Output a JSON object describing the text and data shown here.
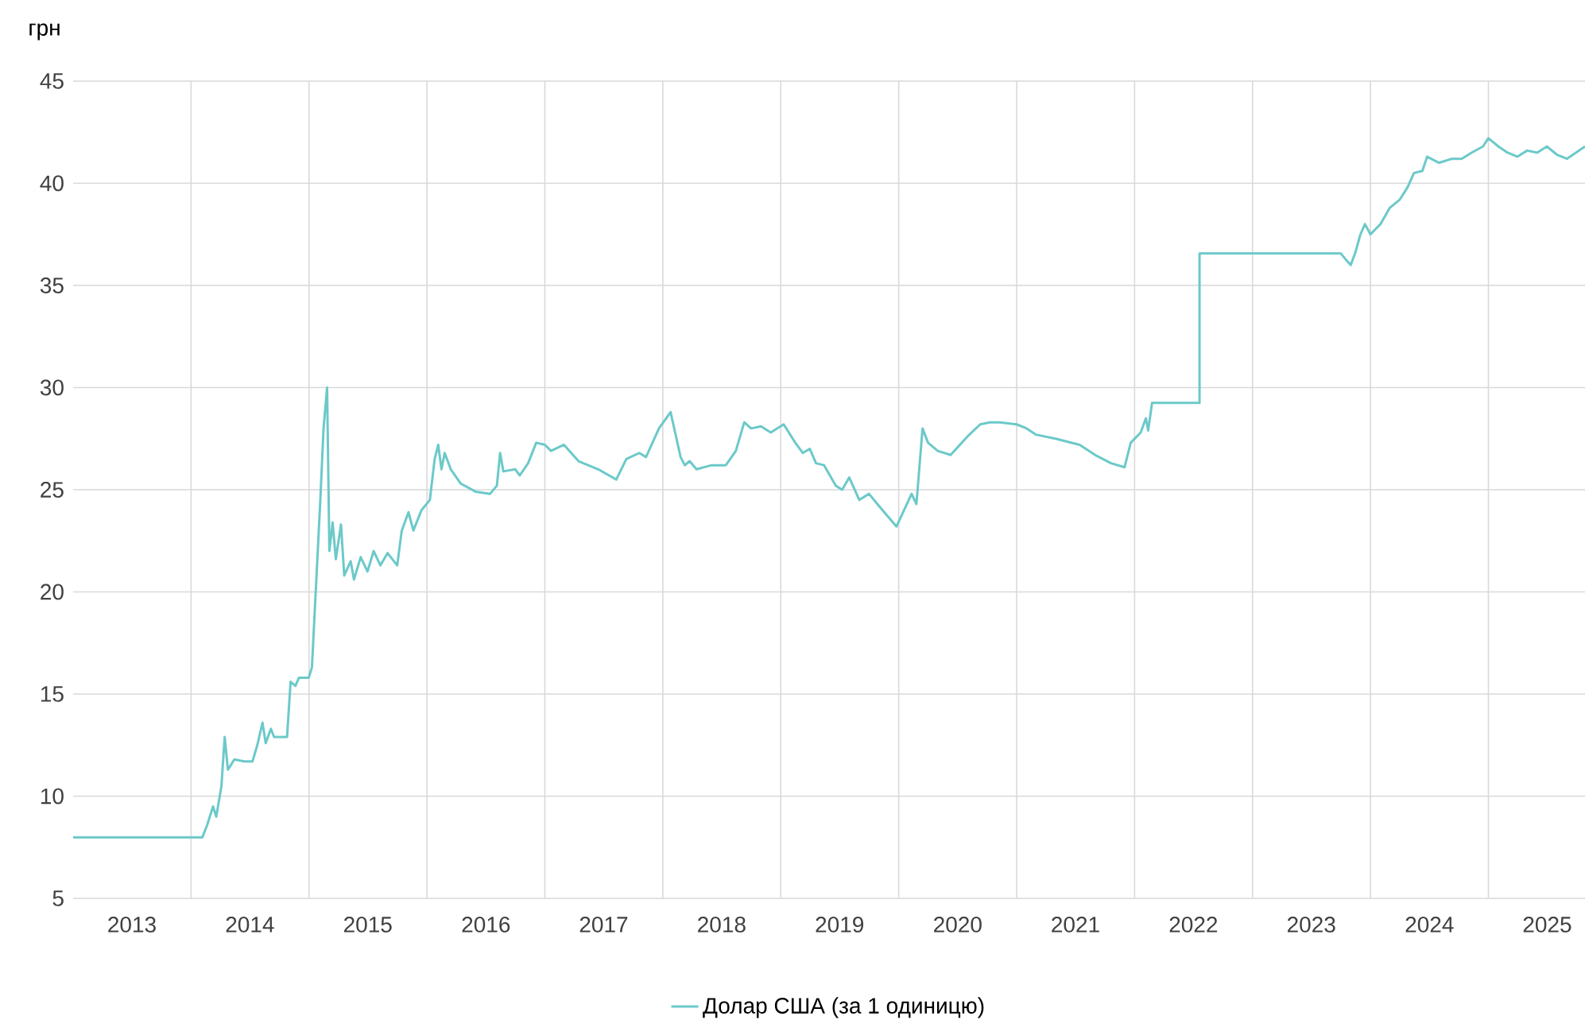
{
  "chart_data": {
    "type": "line",
    "ylabel": "грн",
    "legend": "bottom",
    "grid": true,
    "marker": "none",
    "line_style": "solid",
    "xlim": [
      "2013-01-01",
      "2025-10-27"
    ],
    "ylim": [
      5,
      45
    ],
    "yticks": [
      5,
      10,
      15,
      20,
      25,
      30,
      35,
      40,
      45
    ],
    "xticks": [
      {
        "value": "2014-01-01",
        "label": null
      },
      {
        "value": "2015-01-01",
        "label": null
      },
      {
        "value": "2016-01-01",
        "label": null
      },
      {
        "value": "2017-01-01",
        "label": null
      },
      {
        "value": "2018-01-01",
        "label": null
      },
      {
        "value": "2019-01-01",
        "label": null
      },
      {
        "value": "2020-01-01",
        "label": null
      },
      {
        "value": "2021-01-01",
        "label": null
      },
      {
        "value": "2022-01-01",
        "label": null
      },
      {
        "value": "2023-01-01",
        "label": null
      },
      {
        "value": "2024-01-01",
        "label": null
      },
      {
        "value": "2025-01-01",
        "label": null
      },
      {
        "value": "2013-07-02",
        "label": "2013"
      },
      {
        "value": "2014-07-02",
        "label": "2014"
      },
      {
        "value": "2015-07-02",
        "label": "2015"
      },
      {
        "value": "2016-07-02",
        "label": "2016"
      },
      {
        "value": "2017-07-02",
        "label": "2017"
      },
      {
        "value": "2018-07-02",
        "label": "2018"
      },
      {
        "value": "2019-07-02",
        "label": "2019"
      },
      {
        "value": "2020-07-02",
        "label": "2020"
      },
      {
        "value": "2021-07-02",
        "label": "2021"
      },
      {
        "value": "2022-07-02",
        "label": "2022"
      },
      {
        "value": "2023-07-02",
        "label": "2023"
      },
      {
        "value": "2024-07-02",
        "label": "2024"
      },
      {
        "value": "2025-07-02",
        "label": "2025"
      }
    ],
    "series": [
      {
        "name": "Долар США (за 1 одиницю)",
        "color": "#6cc9c9",
        "x": [
          "2013-01-01",
          "2014-02-05",
          "2014-02-20",
          "2014-03-10",
          "2014-03-20",
          "2014-04-05",
          "2014-04-15",
          "2014-04-25",
          "2014-05-15",
          "2014-06-15",
          "2014-07-10",
          "2014-07-25",
          "2014-08-10",
          "2014-08-20",
          "2014-09-05",
          "2014-09-15",
          "2014-10-25",
          "2014-11-05",
          "2014-11-20",
          "2014-12-01",
          "2014-12-31",
          "2015-01-10",
          "2015-02-05",
          "2015-02-15",
          "2015-02-26",
          "2015-03-05",
          "2015-03-15",
          "2015-03-25",
          "2015-04-10",
          "2015-04-20",
          "2015-05-10",
          "2015-05-20",
          "2015-06-10",
          "2015-07-01",
          "2015-07-20",
          "2015-08-10",
          "2015-09-01",
          "2015-10-01",
          "2015-10-15",
          "2015-11-05",
          "2015-11-20",
          "2015-12-15",
          "2016-01-10",
          "2016-01-25",
          "2016-02-05",
          "2016-02-15",
          "2016-02-25",
          "2016-03-15",
          "2016-04-15",
          "2016-06-01",
          "2016-07-15",
          "2016-08-05",
          "2016-08-15",
          "2016-08-25",
          "2016-10-01",
          "2016-10-15",
          "2016-11-10",
          "2016-12-05",
          "2017-01-01",
          "2017-01-20",
          "2017-03-01",
          "2017-04-15",
          "2017-06-15",
          "2017-08-10",
          "2017-09-10",
          "2017-10-20",
          "2017-11-10",
          "2017-12-20",
          "2018-01-25",
          "2018-02-25",
          "2018-03-10",
          "2018-03-25",
          "2018-04-15",
          "2018-06-01",
          "2018-07-15",
          "2018-08-15",
          "2018-09-10",
          "2018-10-01",
          "2018-11-01",
          "2018-12-01",
          "2019-01-10",
          "2019-02-15",
          "2019-03-10",
          "2019-04-01",
          "2019-04-20",
          "2019-05-15",
          "2019-06-20",
          "2019-07-10",
          "2019-08-01",
          "2019-09-01",
          "2019-10-01",
          "2019-11-01",
          "2019-12-25",
          "2020-02-10",
          "2020-02-25",
          "2020-03-15",
          "2020-04-01",
          "2020-05-01",
          "2020-06-10",
          "2020-08-01",
          "2020-09-10",
          "2020-10-10",
          "2020-11-10",
          "2021-01-01",
          "2021-02-01",
          "2021-03-01",
          "2021-05-01",
          "2021-07-15",
          "2021-09-01",
          "2021-10-20",
          "2021-12-01",
          "2021-12-20",
          "2022-01-20",
          "2022-02-05",
          "2022-02-12",
          "2022-02-24",
          "2022-07-21",
          "2022-07-21",
          "2023-10-01",
          "2023-10-20",
          "2023-11-01",
          "2023-11-15",
          "2023-12-01",
          "2023-12-15",
          "2024-01-01",
          "2024-02-01",
          "2024-03-01",
          "2024-04-01",
          "2024-04-25",
          "2024-05-15",
          "2024-06-10",
          "2024-06-25",
          "2024-08-01",
          "2024-09-10",
          "2024-10-10",
          "2024-11-10",
          "2024-12-15",
          "2025-01-01",
          "2025-02-01",
          "2025-03-01",
          "2025-04-01",
          "2025-05-01",
          "2025-06-01",
          "2025-07-01",
          "2025-08-01",
          "2025-09-01",
          "2025-10-27"
        ],
        "values": [
          7.99,
          7.99,
          8.6,
          9.5,
          9.0,
          10.5,
          12.9,
          11.3,
          11.8,
          11.7,
          11.7,
          12.5,
          13.6,
          12.6,
          13.3,
          12.9,
          12.9,
          15.6,
          15.4,
          15.8,
          15.8,
          16.3,
          24.5,
          28.0,
          30.0,
          22.0,
          23.4,
          21.6,
          23.3,
          20.8,
          21.5,
          20.6,
          21.7,
          21.0,
          22.0,
          21.3,
          21.9,
          21.3,
          23.0,
          23.9,
          23.0,
          24.0,
          24.5,
          26.5,
          27.2,
          26.0,
          26.8,
          26.0,
          25.3,
          24.9,
          24.8,
          25.2,
          26.8,
          25.9,
          26.0,
          25.7,
          26.3,
          27.3,
          27.2,
          26.9,
          27.2,
          26.4,
          26.0,
          25.5,
          26.5,
          26.8,
          26.6,
          28.0,
          28.8,
          26.6,
          26.2,
          26.4,
          26.0,
          26.2,
          26.2,
          26.9,
          28.3,
          28.0,
          28.1,
          27.8,
          28.2,
          27.3,
          26.8,
          27.0,
          26.3,
          26.2,
          25.2,
          25.0,
          25.6,
          24.5,
          24.8,
          24.2,
          23.2,
          24.8,
          24.3,
          28.0,
          27.3,
          26.9,
          26.7,
          27.6,
          28.2,
          28.3,
          28.3,
          28.2,
          28.0,
          27.7,
          27.5,
          27.2,
          26.7,
          26.3,
          26.1,
          27.3,
          27.8,
          28.5,
          27.9,
          29.25,
          29.25,
          36.57,
          36.57,
          36.2,
          36.0,
          36.6,
          37.5,
          38.0,
          37.5,
          38.0,
          38.8,
          39.2,
          39.8,
          40.5,
          40.6,
          41.3,
          41.0,
          41.2,
          41.2,
          41.5,
          41.8,
          42.2,
          41.8,
          41.5,
          41.3,
          41.6,
          41.5,
          41.8,
          41.4,
          41.2,
          41.8
        ]
      }
    ]
  }
}
